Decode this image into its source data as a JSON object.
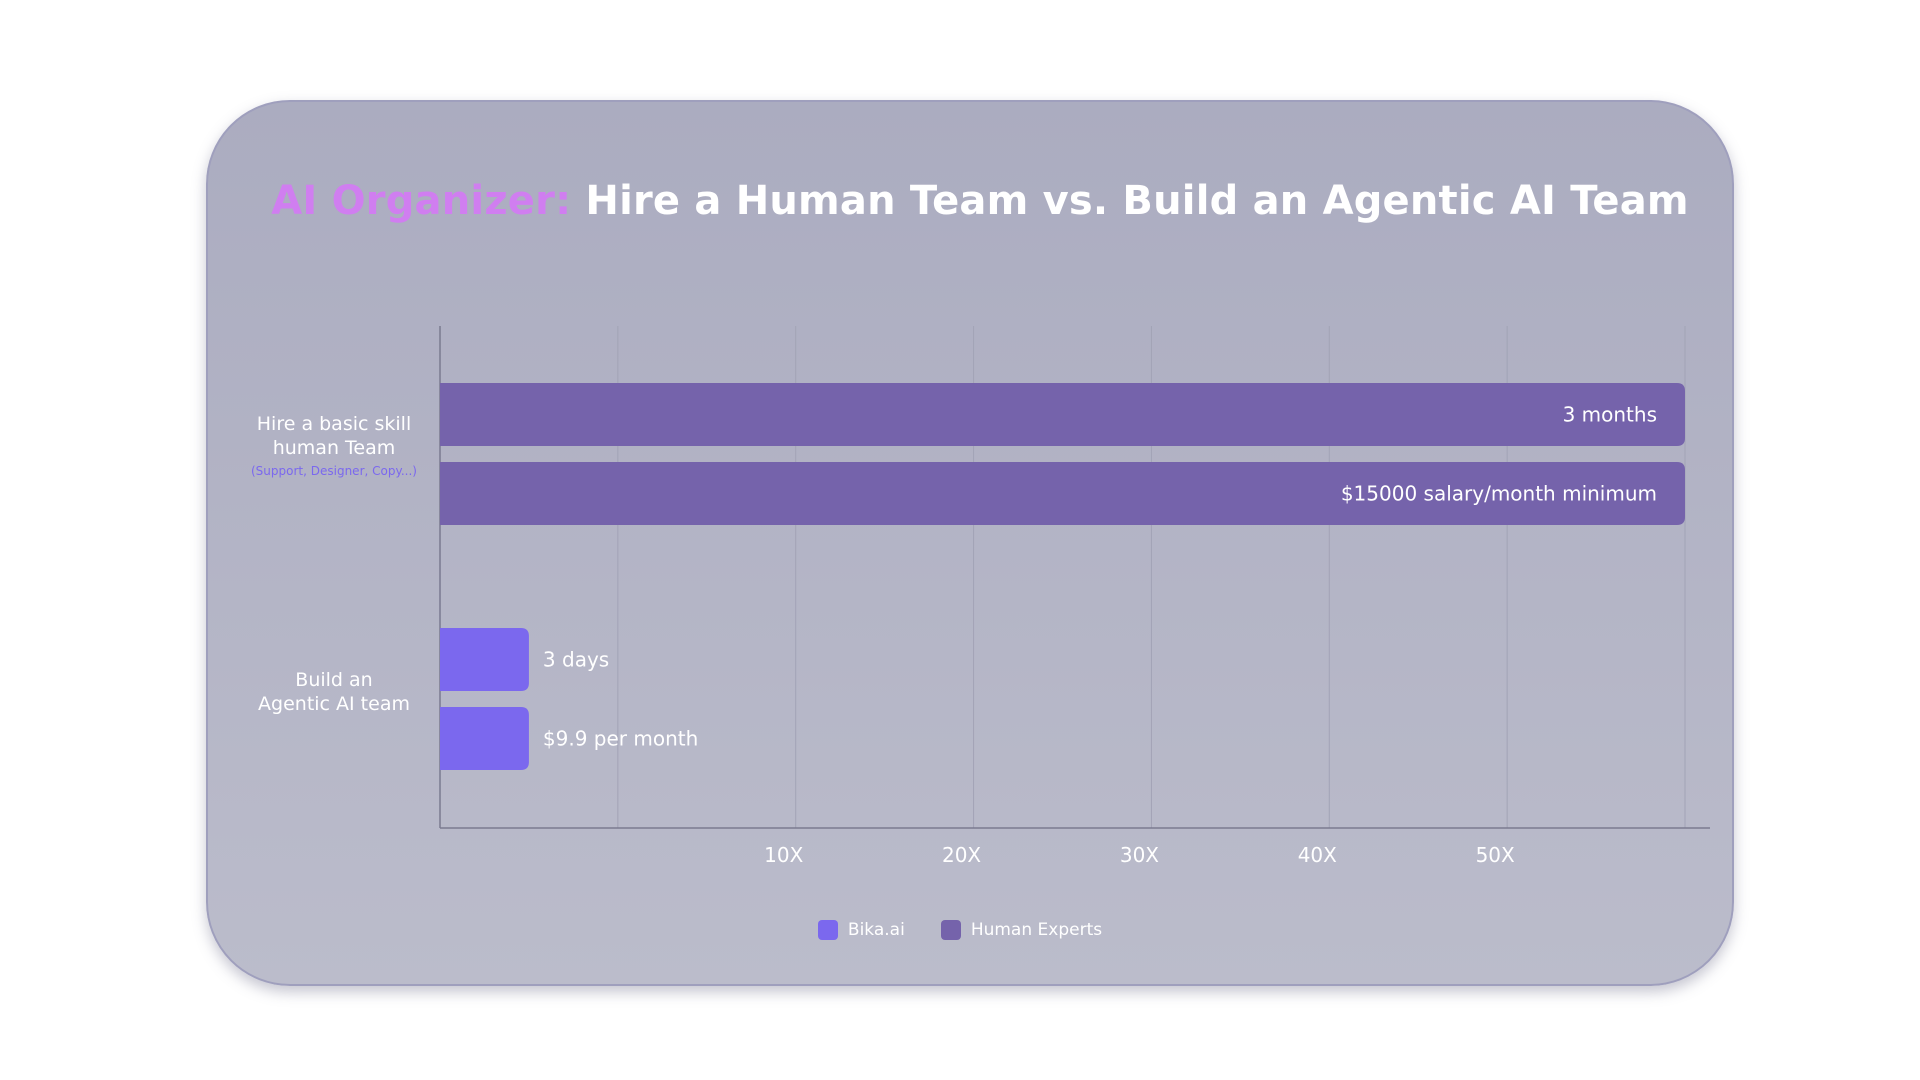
{
  "title": {
    "accent": "AI Organizer:",
    "main": "Hire a Human Team vs. Build an Agentic AI Team"
  },
  "colors": {
    "bika": "#7b68ee",
    "human": "#7563ab",
    "accent": "#d07ef0",
    "grid": "#a2a3b6",
    "axis": "#7a7a90"
  },
  "categories": [
    {
      "label_lines": [
        "Hire a basic skill",
        "human Team"
      ],
      "sub": "(Support, Designer, Copy...)"
    },
    {
      "label_lines": [
        "Build an",
        "Agentic AI team"
      ],
      "sub": ""
    }
  ],
  "chart_data": {
    "type": "bar",
    "orientation": "horizontal",
    "title": "AI Organizer: Hire a Human Team vs. Build an Agentic AI Team",
    "categories": [
      "Hire a basic skill human Team (Support, Designer, Copy...)",
      "Build an Agentic AI team"
    ],
    "x_ticks": [
      "10X",
      "20X",
      "30X",
      "40X",
      "50X"
    ],
    "x_tick_values": [
      20,
      30,
      40,
      50,
      60
    ],
    "xlim": [
      0,
      70
    ],
    "grid": true,
    "legend_position": "bottom-center",
    "series": [
      {
        "name": "Human Experts",
        "color": "#7563ab",
        "bars": [
          {
            "category": 0,
            "value": 70,
            "label": "3 months"
          },
          {
            "category": 0,
            "value": 70,
            "label": "$15000 salary/month minimum"
          }
        ]
      },
      {
        "name": "Bika.ai",
        "color": "#7b68ee",
        "bars": [
          {
            "category": 1,
            "value": 5,
            "label": "3 days"
          },
          {
            "category": 1,
            "value": 5,
            "label": "$9.9 per month"
          }
        ]
      }
    ]
  },
  "legend": [
    {
      "name": "Bika.ai",
      "color": "#7b68ee"
    },
    {
      "name": "Human Experts",
      "color": "#7563ab"
    }
  ]
}
